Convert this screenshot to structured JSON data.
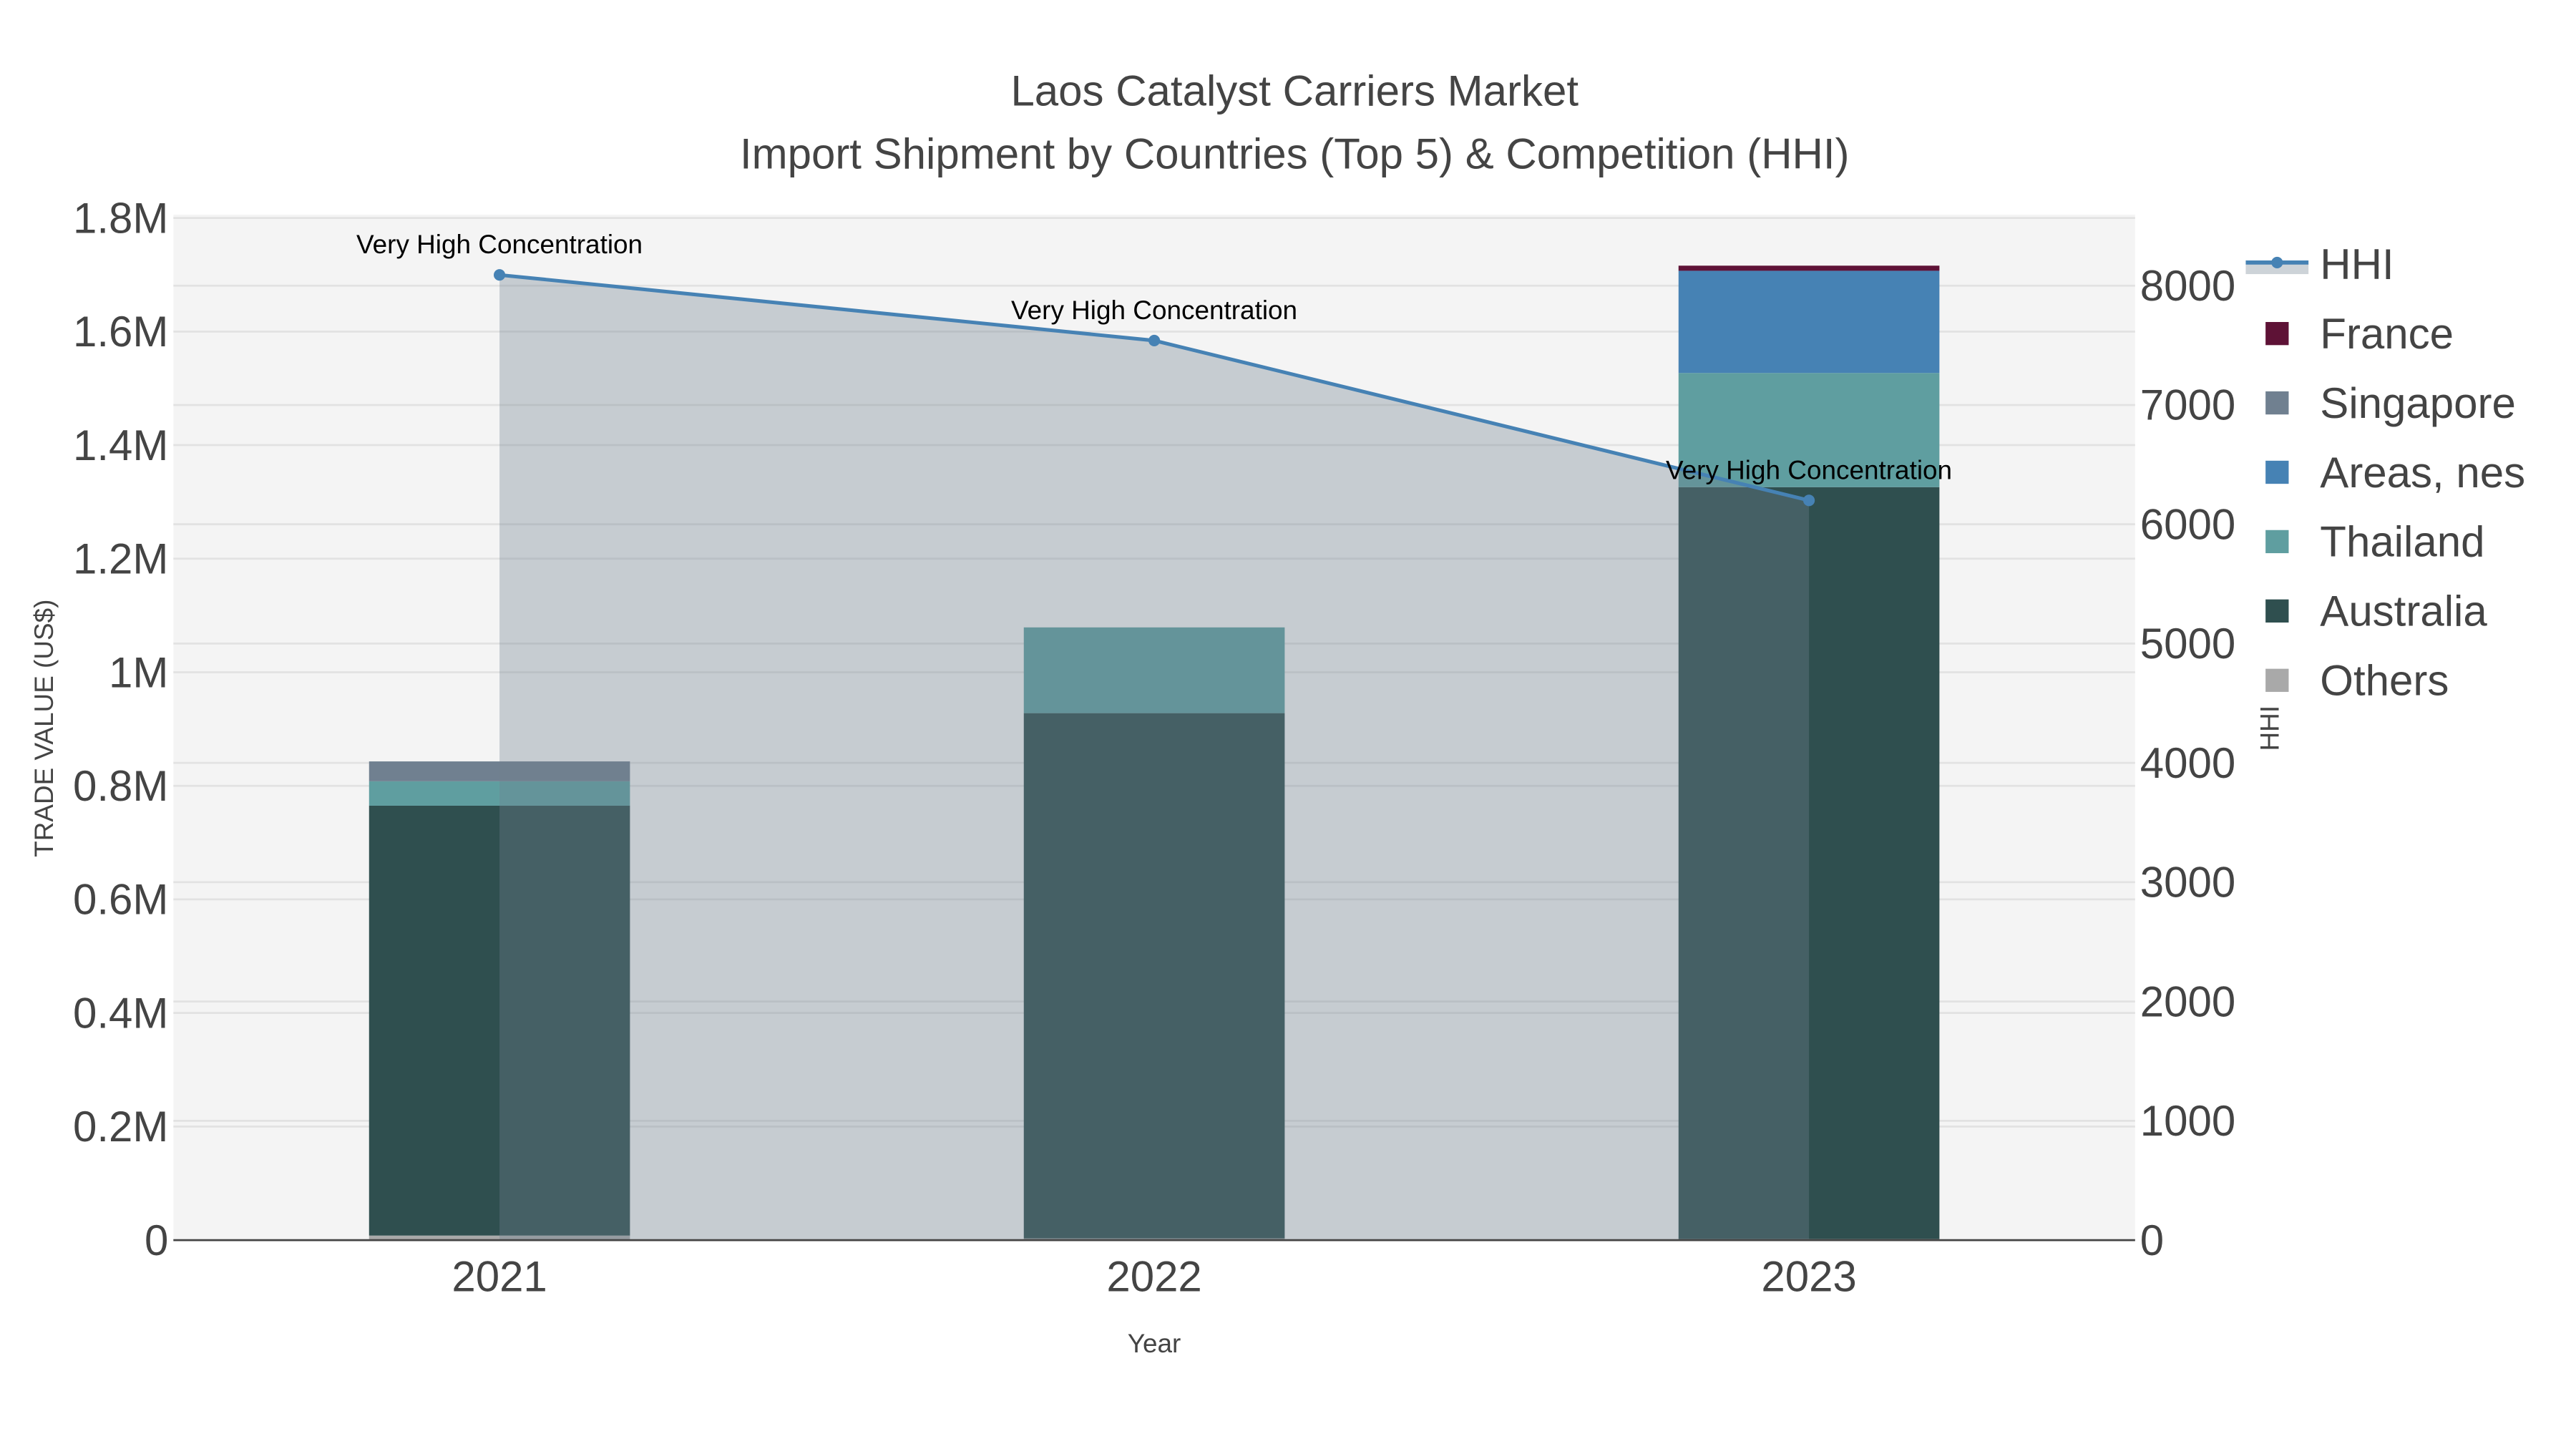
{
  "chart_data": {
    "type": "bar",
    "title": "Laos Catalyst Carriers Market",
    "subtitle": "Import Shipment by Countries (Top 5) & Competition (HHI)",
    "xlabel": "Year",
    "ylabel": "TRADE VALUE (US$)",
    "y2label": "HHI",
    "categories": [
      "2021",
      "2022",
      "2023"
    ],
    "barmode": "stack",
    "ylim": [
      0,
      1800000
    ],
    "y2lim": [
      0,
      8600
    ],
    "yticks": [
      0,
      200000,
      400000,
      600000,
      800000,
      1000000,
      1200000,
      1400000,
      1600000,
      1800000
    ],
    "ytick_labels": [
      "0",
      "0.2M",
      "0.4M",
      "0.6M",
      "0.8M",
      "1M",
      "1.2M",
      "1.4M",
      "1.6M",
      "1.8M"
    ],
    "y2ticks": [
      0,
      1000,
      2000,
      3000,
      4000,
      5000,
      6000,
      7000,
      8000
    ],
    "y2tick_labels": [
      "0",
      "1000",
      "2000",
      "3000",
      "4000",
      "5000",
      "6000",
      "7000",
      "8000"
    ],
    "series": [
      {
        "name": "Others",
        "color": "#a9a9a9",
        "values": [
          8000,
          3000,
          2000
        ]
      },
      {
        "name": "Australia",
        "color": "#2f4f4f",
        "values": [
          757000,
          925000,
          1324000
        ]
      },
      {
        "name": "Thailand",
        "color": "#5f9ea0",
        "values": [
          43000,
          151000,
          201000
        ]
      },
      {
        "name": "Areas, nes",
        "color": "#4682b4",
        "values": [
          0,
          0,
          180000
        ]
      },
      {
        "name": "Singapore",
        "color": "#708090",
        "values": [
          35000,
          0,
          0
        ]
      },
      {
        "name": "France",
        "color": "#5e1236",
        "values": [
          0,
          0,
          9000
        ]
      }
    ],
    "line": {
      "name": "HHI",
      "color": "#4682b4",
      "area_color": "#708090",
      "axis": "right",
      "values": [
        8090,
        7540,
        6200
      ],
      "annotations": [
        "Very High Concentration",
        "Very High Concentration",
        "Very High Concentration"
      ]
    },
    "legend": {
      "position": "right",
      "items": [
        "HHI",
        "France",
        "Singapore",
        "Areas, nes",
        "Thailand",
        "Australia",
        "Others"
      ]
    },
    "grid": true
  }
}
